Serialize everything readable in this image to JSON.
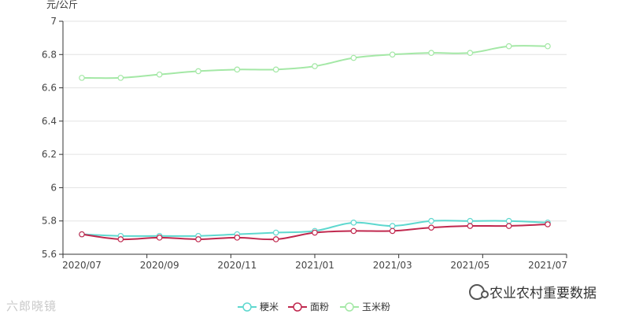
{
  "chart_data": {
    "type": "line",
    "ylabel": "元/公斤",
    "ylim": [
      5.6,
      7.0
    ],
    "y_ticks": [
      "5.6",
      "5.8",
      "6",
      "6.2",
      "6.4",
      "6.6",
      "6.8",
      "7"
    ],
    "x_tick_labels": [
      "2020/07",
      "2020/09",
      "2020/11",
      "2021/01",
      "2021/03",
      "2021/05",
      "2021/07"
    ],
    "x": [
      "2020/07",
      "2020/08",
      "2020/09",
      "2020/10",
      "2020/11",
      "2020/12",
      "2021/01",
      "2021/02",
      "2021/03",
      "2021/04",
      "2021/05",
      "2021/06",
      "2021/07"
    ],
    "grid": true,
    "legend": "bottom-center",
    "series": [
      {
        "name": "粳米",
        "color": "#5ed8cf",
        "values": [
          5.72,
          5.71,
          5.71,
          5.71,
          5.72,
          5.73,
          5.74,
          5.79,
          5.77,
          5.8,
          5.8,
          5.8,
          5.79
        ]
      },
      {
        "name": "面粉",
        "color": "#c0284e",
        "values": [
          5.72,
          5.69,
          5.7,
          5.69,
          5.7,
          5.69,
          5.73,
          5.74,
          5.74,
          5.76,
          5.77,
          5.77,
          5.78
        ]
      },
      {
        "name": "玉米粉",
        "color": "#a4e8a6",
        "values": [
          6.66,
          6.66,
          6.68,
          6.7,
          6.71,
          6.71,
          6.73,
          6.78,
          6.8,
          6.81,
          6.81,
          6.85,
          6.85
        ]
      }
    ]
  },
  "watermark_left": "六郎晓镜",
  "watermark_right": "农业农村重要数据",
  "icons": {
    "watermark_right": "wechat-icon"
  }
}
